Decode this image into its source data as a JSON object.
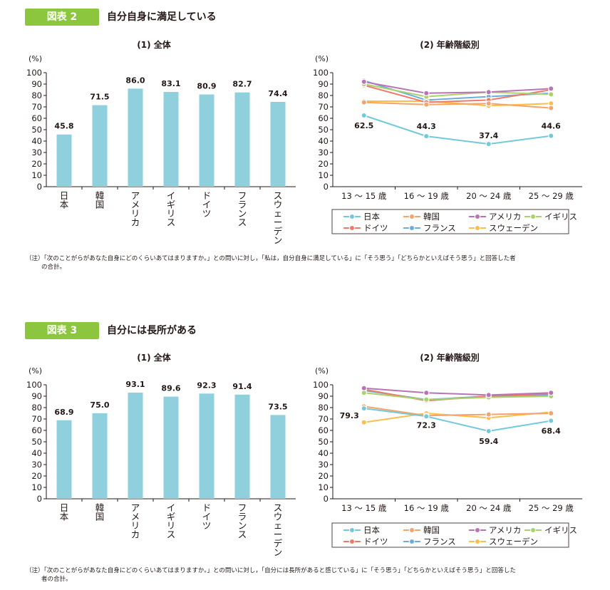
{
  "figures": [
    {
      "badge": "図表 2",
      "title": "自分自身に満足している",
      "sub_left": "(1) 全体",
      "sub_right": "(2) 年齢階級別",
      "note_line1": "（注）「次のことがらがあなた自身にどのくらいあてはまりますか。」との問いに対し，「私は，自分自身に満足している」に「そう思う」「どちらかといえばそう思う」と回答した者",
      "note_line2": "の合計。"
    },
    {
      "badge": "図表 3",
      "title": "自分には長所がある",
      "sub_left": "(1) 全体",
      "sub_right": "(2) 年齢階級別",
      "note_line1": "（注）「次のことがらがあなた自身にどのくらいあてはまりますか。」との問いに対し，「自分には長所があると感じている」に「そう思う」「どちらかといえばそう思う」と回答した",
      "note_line2": "者の合計。"
    }
  ],
  "legend_order": [
    "日本",
    "韓国",
    "アメリカ",
    "イギリス",
    "ドイツ",
    "フランス",
    "スウェーデン"
  ],
  "colors": {
    "日本": "#71c9d9",
    "韓国": "#f4a46a",
    "アメリカ": "#b973b6",
    "イギリス": "#a9d26a",
    "ドイツ": "#ee7a6d",
    "フランス": "#6aaed9",
    "スウェーデン": "#fbbd4c",
    "bar": "#8fd0dc",
    "badge": "#8cc63f"
  },
  "chart_data": [
    {
      "type": "bar",
      "unit": "(%)",
      "categories": [
        "日本",
        "韓国",
        "アメリカ",
        "イギリス",
        "ドイツ",
        "フランス",
        "スウェーデン"
      ],
      "values": [
        45.8,
        71.5,
        86.0,
        83.1,
        80.9,
        82.7,
        74.4
      ],
      "value_labels": [
        "45.8",
        "71.5",
        "86.0",
        "83.1",
        "80.9",
        "82.7",
        "74.4"
      ],
      "ylim": [
        0,
        100
      ],
      "yticks": [
        0,
        10,
        20,
        30,
        40,
        50,
        60,
        70,
        80,
        90,
        100
      ]
    },
    {
      "type": "line",
      "unit": "(%)",
      "categories": [
        "13 ～ 15 歳",
        "16 ～ 19 歳",
        "20 ～ 24 歳",
        "25 ～ 29 歳"
      ],
      "ylim": [
        0,
        100
      ],
      "yticks": [
        0,
        10,
        20,
        30,
        40,
        50,
        60,
        70,
        80,
        90,
        100
      ],
      "series": [
        {
          "name": "日本",
          "values": [
            62.5,
            44.3,
            37.4,
            44.6
          ],
          "labels": [
            "62.5",
            "44.3",
            "37.4",
            "44.6"
          ]
        },
        {
          "name": "韓国",
          "values": [
            74,
            72,
            73,
            69
          ]
        },
        {
          "name": "アメリカ",
          "values": [
            92,
            82,
            83,
            86
          ]
        },
        {
          "name": "イギリス",
          "values": [
            90,
            79,
            83,
            81
          ]
        },
        {
          "name": "ドイツ",
          "values": [
            89,
            74,
            76,
            85
          ]
        },
        {
          "name": "フランス",
          "values": [
            93,
            76,
            79,
            82
          ]
        },
        {
          "name": "スウェーデン",
          "values": [
            75,
            75,
            71,
            73
          ]
        }
      ]
    },
    {
      "type": "bar",
      "unit": "(%)",
      "categories": [
        "日本",
        "韓国",
        "アメリカ",
        "イギリス",
        "ドイツ",
        "フランス",
        "スウェーデン"
      ],
      "values": [
        68.9,
        75.0,
        93.1,
        89.6,
        92.3,
        91.4,
        73.5
      ],
      "value_labels": [
        "68.9",
        "75.0",
        "93.1",
        "89.6",
        "92.3",
        "91.4",
        "73.5"
      ],
      "ylim": [
        0,
        100
      ],
      "yticks": [
        0,
        10,
        20,
        30,
        40,
        50,
        60,
        70,
        80,
        90,
        100
      ]
    },
    {
      "type": "line",
      "unit": "(%)",
      "categories": [
        "13 ～ 15 歳",
        "16 ～ 19 歳",
        "20 ～ 24 歳",
        "25 ～ 29 歳"
      ],
      "ylim": [
        0,
        100
      ],
      "yticks": [
        0,
        10,
        20,
        30,
        40,
        50,
        60,
        70,
        80,
        90,
        100
      ],
      "series": [
        {
          "name": "日本",
          "values": [
            79.3,
            72.3,
            59.4,
            68.4
          ],
          "labels": [
            "79.3",
            "72.3",
            "59.4",
            "68.4"
          ]
        },
        {
          "name": "韓国",
          "values": [
            81,
            73,
            74,
            75
          ]
        },
        {
          "name": "アメリカ",
          "values": [
            97,
            93,
            91,
            93
          ]
        },
        {
          "name": "イギリス",
          "values": [
            93,
            87,
            89,
            90
          ]
        },
        {
          "name": "ドイツ",
          "values": [
            96,
            86,
            90,
            92
          ]
        },
        {
          "name": "フランス",
          "values": [
            95,
            87,
            90,
            91
          ]
        },
        {
          "name": "スウェーデン",
          "values": [
            67,
            75,
            71,
            76
          ]
        }
      ]
    }
  ]
}
